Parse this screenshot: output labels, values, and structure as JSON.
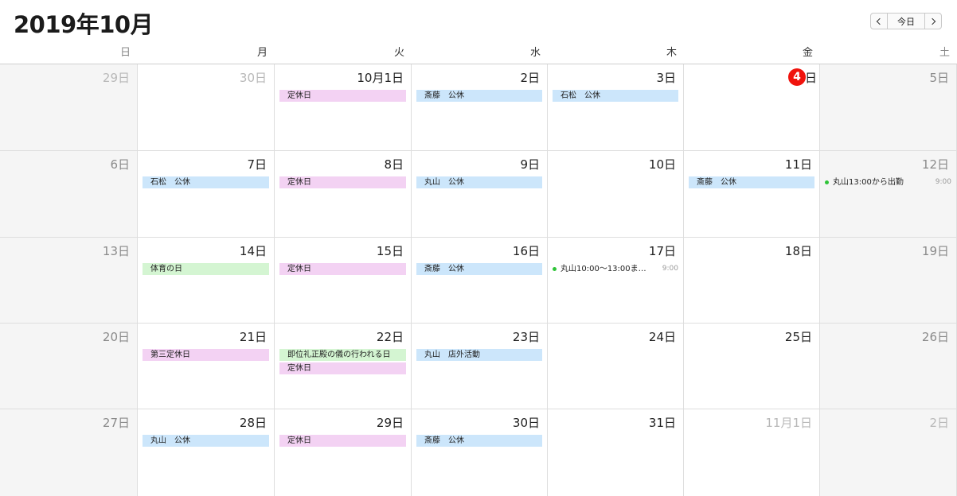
{
  "header": {
    "title": "2019年10月",
    "nav": {
      "today_label": "今日"
    }
  },
  "weekdays": [
    "日",
    "月",
    "火",
    "水",
    "木",
    "金",
    "土"
  ],
  "weeks": [
    [
      {
        "label": "29日",
        "muted": true,
        "weekend": true,
        "events": []
      },
      {
        "label": "30日",
        "muted": true,
        "events": []
      },
      {
        "label": "10月1日",
        "events": [
          {
            "title": "定休日",
            "color": "pink"
          }
        ]
      },
      {
        "label": "2日",
        "events": [
          {
            "title": "斎藤　公休",
            "color": "blue"
          }
        ]
      },
      {
        "label": "3日",
        "events": [
          {
            "title": "石松　公休",
            "color": "blue"
          }
        ]
      },
      {
        "label": "4",
        "suffix": "日",
        "today": true,
        "events": []
      },
      {
        "label": "5日",
        "weekend": true,
        "events": []
      }
    ],
    [
      {
        "label": "6日",
        "weekend": true,
        "events": []
      },
      {
        "label": "7日",
        "events": [
          {
            "title": "石松　公休",
            "color": "blue"
          }
        ]
      },
      {
        "label": "8日",
        "events": [
          {
            "title": "定休日",
            "color": "pink"
          }
        ]
      },
      {
        "label": "9日",
        "events": [
          {
            "title": "丸山　公休",
            "color": "blue"
          }
        ]
      },
      {
        "label": "10日",
        "events": []
      },
      {
        "label": "11日",
        "events": [
          {
            "title": "斎藤　公休",
            "color": "blue"
          }
        ]
      },
      {
        "label": "12日",
        "weekend": true,
        "events": [
          {
            "title": "丸山13:00から出勤",
            "time": "9:00",
            "timed": true
          }
        ]
      }
    ],
    [
      {
        "label": "13日",
        "weekend": true,
        "events": []
      },
      {
        "label": "14日",
        "events": [
          {
            "title": "体育の日",
            "color": "green"
          }
        ]
      },
      {
        "label": "15日",
        "events": [
          {
            "title": "定休日",
            "color": "pink"
          }
        ]
      },
      {
        "label": "16日",
        "events": [
          {
            "title": "斎藤　公休",
            "color": "blue"
          }
        ]
      },
      {
        "label": "17日",
        "events": [
          {
            "title": "丸山10:00〜13:00ま…",
            "time": "9:00",
            "timed": true
          }
        ]
      },
      {
        "label": "18日",
        "events": []
      },
      {
        "label": "19日",
        "weekend": true,
        "events": []
      }
    ],
    [
      {
        "label": "20日",
        "weekend": true,
        "events": []
      },
      {
        "label": "21日",
        "events": [
          {
            "title": "第三定休日",
            "color": "pink"
          }
        ]
      },
      {
        "label": "22日",
        "events": [
          {
            "title": "即位礼正殿の儀の行われる日",
            "color": "green"
          },
          {
            "title": "定休日",
            "color": "pink"
          }
        ]
      },
      {
        "label": "23日",
        "events": [
          {
            "title": "丸山　店外活動",
            "color": "blue"
          }
        ]
      },
      {
        "label": "24日",
        "events": []
      },
      {
        "label": "25日",
        "events": []
      },
      {
        "label": "26日",
        "weekend": true,
        "events": []
      }
    ],
    [
      {
        "label": "27日",
        "weekend": true,
        "events": []
      },
      {
        "label": "28日",
        "events": [
          {
            "title": "丸山　公休",
            "color": "blue"
          }
        ]
      },
      {
        "label": "29日",
        "events": [
          {
            "title": "定休日",
            "color": "pink"
          }
        ]
      },
      {
        "label": "30日",
        "events": [
          {
            "title": "斎藤　公休",
            "color": "blue"
          }
        ]
      },
      {
        "label": "31日",
        "events": []
      },
      {
        "label": "11月1日",
        "muted": true,
        "events": []
      },
      {
        "label": "2日",
        "muted": true,
        "weekend": true,
        "events": []
      }
    ]
  ]
}
